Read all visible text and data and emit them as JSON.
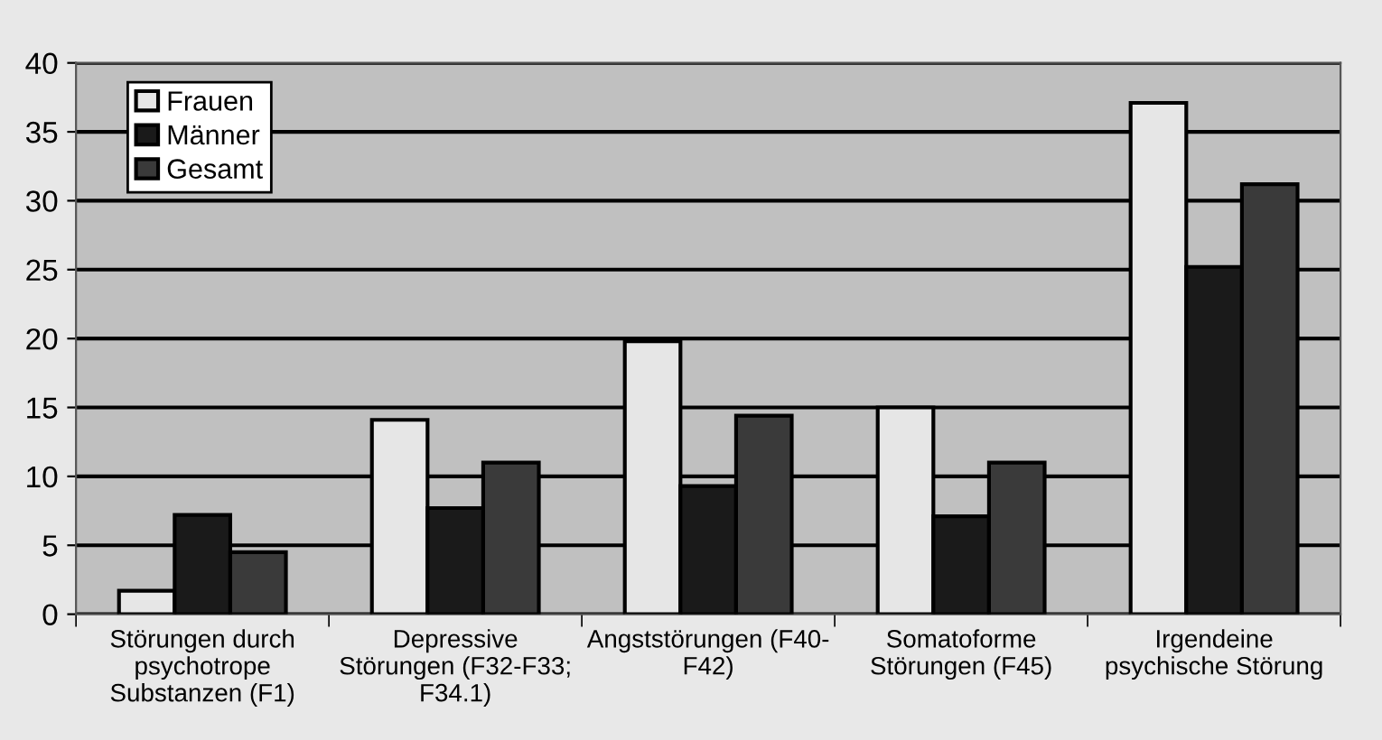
{
  "chart_data": {
    "type": "bar",
    "categories": [
      "Störungen durch\npsychotrope\nSubstanzen (F1)",
      "Depressive\nStörungen (F32-F33;\nF34.1)",
      "Angststörungen (F40-\nF42)",
      "Somatoforme\nStörungen (F45)",
      "Irgendeine\npsychische Störung"
    ],
    "series": [
      {
        "name": "Frauen",
        "color": "#e6e6e6",
        "values": [
          1.7,
          14.1,
          19.8,
          15.0,
          37.1
        ]
      },
      {
        "name": "Männer",
        "color": "#1a1a1a",
        "values": [
          7.2,
          7.7,
          9.3,
          7.1,
          25.2
        ]
      },
      {
        "name": "Gesamt",
        "color": "#3a3a3a",
        "values": [
          4.5,
          11.0,
          14.4,
          11.0,
          31.2
        ]
      }
    ],
    "ylim": [
      0,
      40
    ],
    "yticks": [
      0,
      5,
      10,
      15,
      20,
      25,
      30,
      35,
      40
    ],
    "grid": "y",
    "legend": "top left"
  }
}
